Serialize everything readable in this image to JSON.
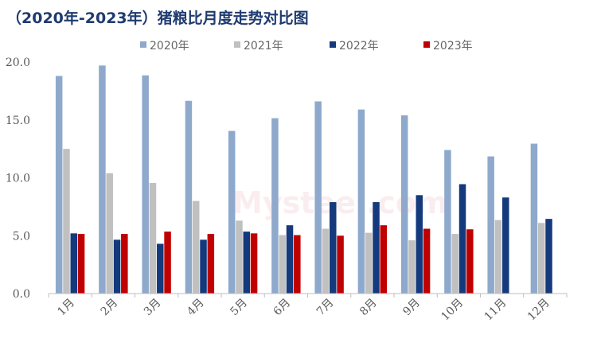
{
  "title": "（2020年-2023年）猪粮比月度走势对比图",
  "watermark": "Mysteel.com",
  "chart_data": {
    "type": "bar",
    "title": "（2020年-2023年）猪粮比月度走势对比图",
    "xlabel": "",
    "ylabel": "",
    "ylim": [
      0,
      20
    ],
    "yticks": [
      "0.0",
      "5.0",
      "10.0",
      "15.0",
      "20.0"
    ],
    "grid": false,
    "legend_position": "top",
    "categories": [
      "1月",
      "2月",
      "3月",
      "4月",
      "5月",
      "6月",
      "7月",
      "8月",
      "9月",
      "10月",
      "11月",
      "12月"
    ],
    "series": [
      {
        "name": "2020年",
        "color": "#8ea9cc",
        "values": [
          18.8,
          19.7,
          18.85,
          16.65,
          14.05,
          15.15,
          16.6,
          15.9,
          15.4,
          12.4,
          11.85,
          12.95
        ]
      },
      {
        "name": "2021年",
        "color": "#c0c0c0",
        "values": [
          12.5,
          10.4,
          9.55,
          8.0,
          6.3,
          5.05,
          5.6,
          5.25,
          4.6,
          5.15,
          6.35,
          6.1
        ]
      },
      {
        "name": "2022年",
        "color": "#14397c",
        "values": [
          5.2,
          4.65,
          4.3,
          4.65,
          5.35,
          5.9,
          7.9,
          7.9,
          8.5,
          9.45,
          8.3,
          6.45
        ]
      },
      {
        "name": "2023年",
        "color": "#c00000",
        "values": [
          5.15,
          5.15,
          5.35,
          5.15,
          5.2,
          5.05,
          5.0,
          5.9,
          5.6,
          5.55,
          null,
          null
        ]
      }
    ]
  }
}
